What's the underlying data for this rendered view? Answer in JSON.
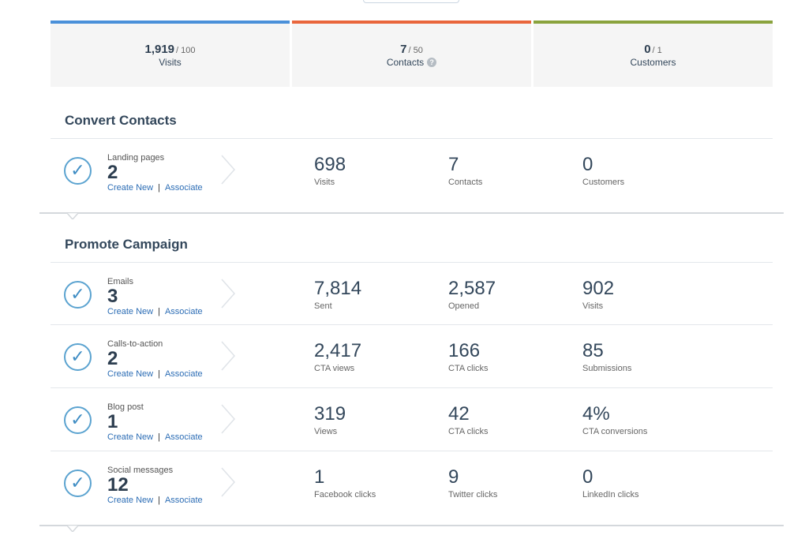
{
  "summary": [
    {
      "value": "1,919",
      "goal": "/ 100",
      "label": "Visits",
      "color": "#4a90d9"
    },
    {
      "value": "7",
      "goal": "/ 50",
      "label": "Contacts",
      "color": "#e9663c"
    },
    {
      "value": "0",
      "goal": "/ 1",
      "label": "Customers",
      "color": "#8aa33d"
    }
  ],
  "sections": {
    "convert": {
      "title": "Convert Contacts"
    },
    "promote": {
      "title": "Promote Campaign"
    }
  },
  "links": {
    "create": "Create New",
    "separator": "|",
    "associate": "Associate"
  },
  "rows": [
    {
      "label": "Landing pages",
      "count": "2",
      "metrics": [
        {
          "value": "698",
          "label": "Visits"
        },
        {
          "value": "7",
          "label": "Contacts"
        },
        {
          "value": "0",
          "label": "Customers"
        }
      ]
    },
    {
      "label": "Emails",
      "count": "3",
      "metrics": [
        {
          "value": "7,814",
          "label": "Sent"
        },
        {
          "value": "2,587",
          "label": "Opened"
        },
        {
          "value": "902",
          "label": "Visits"
        }
      ]
    },
    {
      "label": "Calls-to-action",
      "count": "2",
      "metrics": [
        {
          "value": "2,417",
          "label": "CTA views"
        },
        {
          "value": "166",
          "label": "CTA clicks"
        },
        {
          "value": "85",
          "label": "Submissions"
        }
      ]
    },
    {
      "label": "Blog post",
      "count": "1",
      "metrics": [
        {
          "value": "319",
          "label": "Views"
        },
        {
          "value": "42",
          "label": "CTA clicks"
        },
        {
          "value": "4%",
          "label": "CTA conversions"
        }
      ]
    },
    {
      "label": "Social messages",
      "count": "12",
      "metrics": [
        {
          "value": "1",
          "label": "Facebook clicks"
        },
        {
          "value": "9",
          "label": "Twitter clicks"
        },
        {
          "value": "0",
          "label": "LinkedIn clicks"
        }
      ]
    }
  ],
  "icons": {
    "check": "check-circle-icon",
    "chevron": "chevron-right-icon",
    "help": "question-mark-icon"
  }
}
